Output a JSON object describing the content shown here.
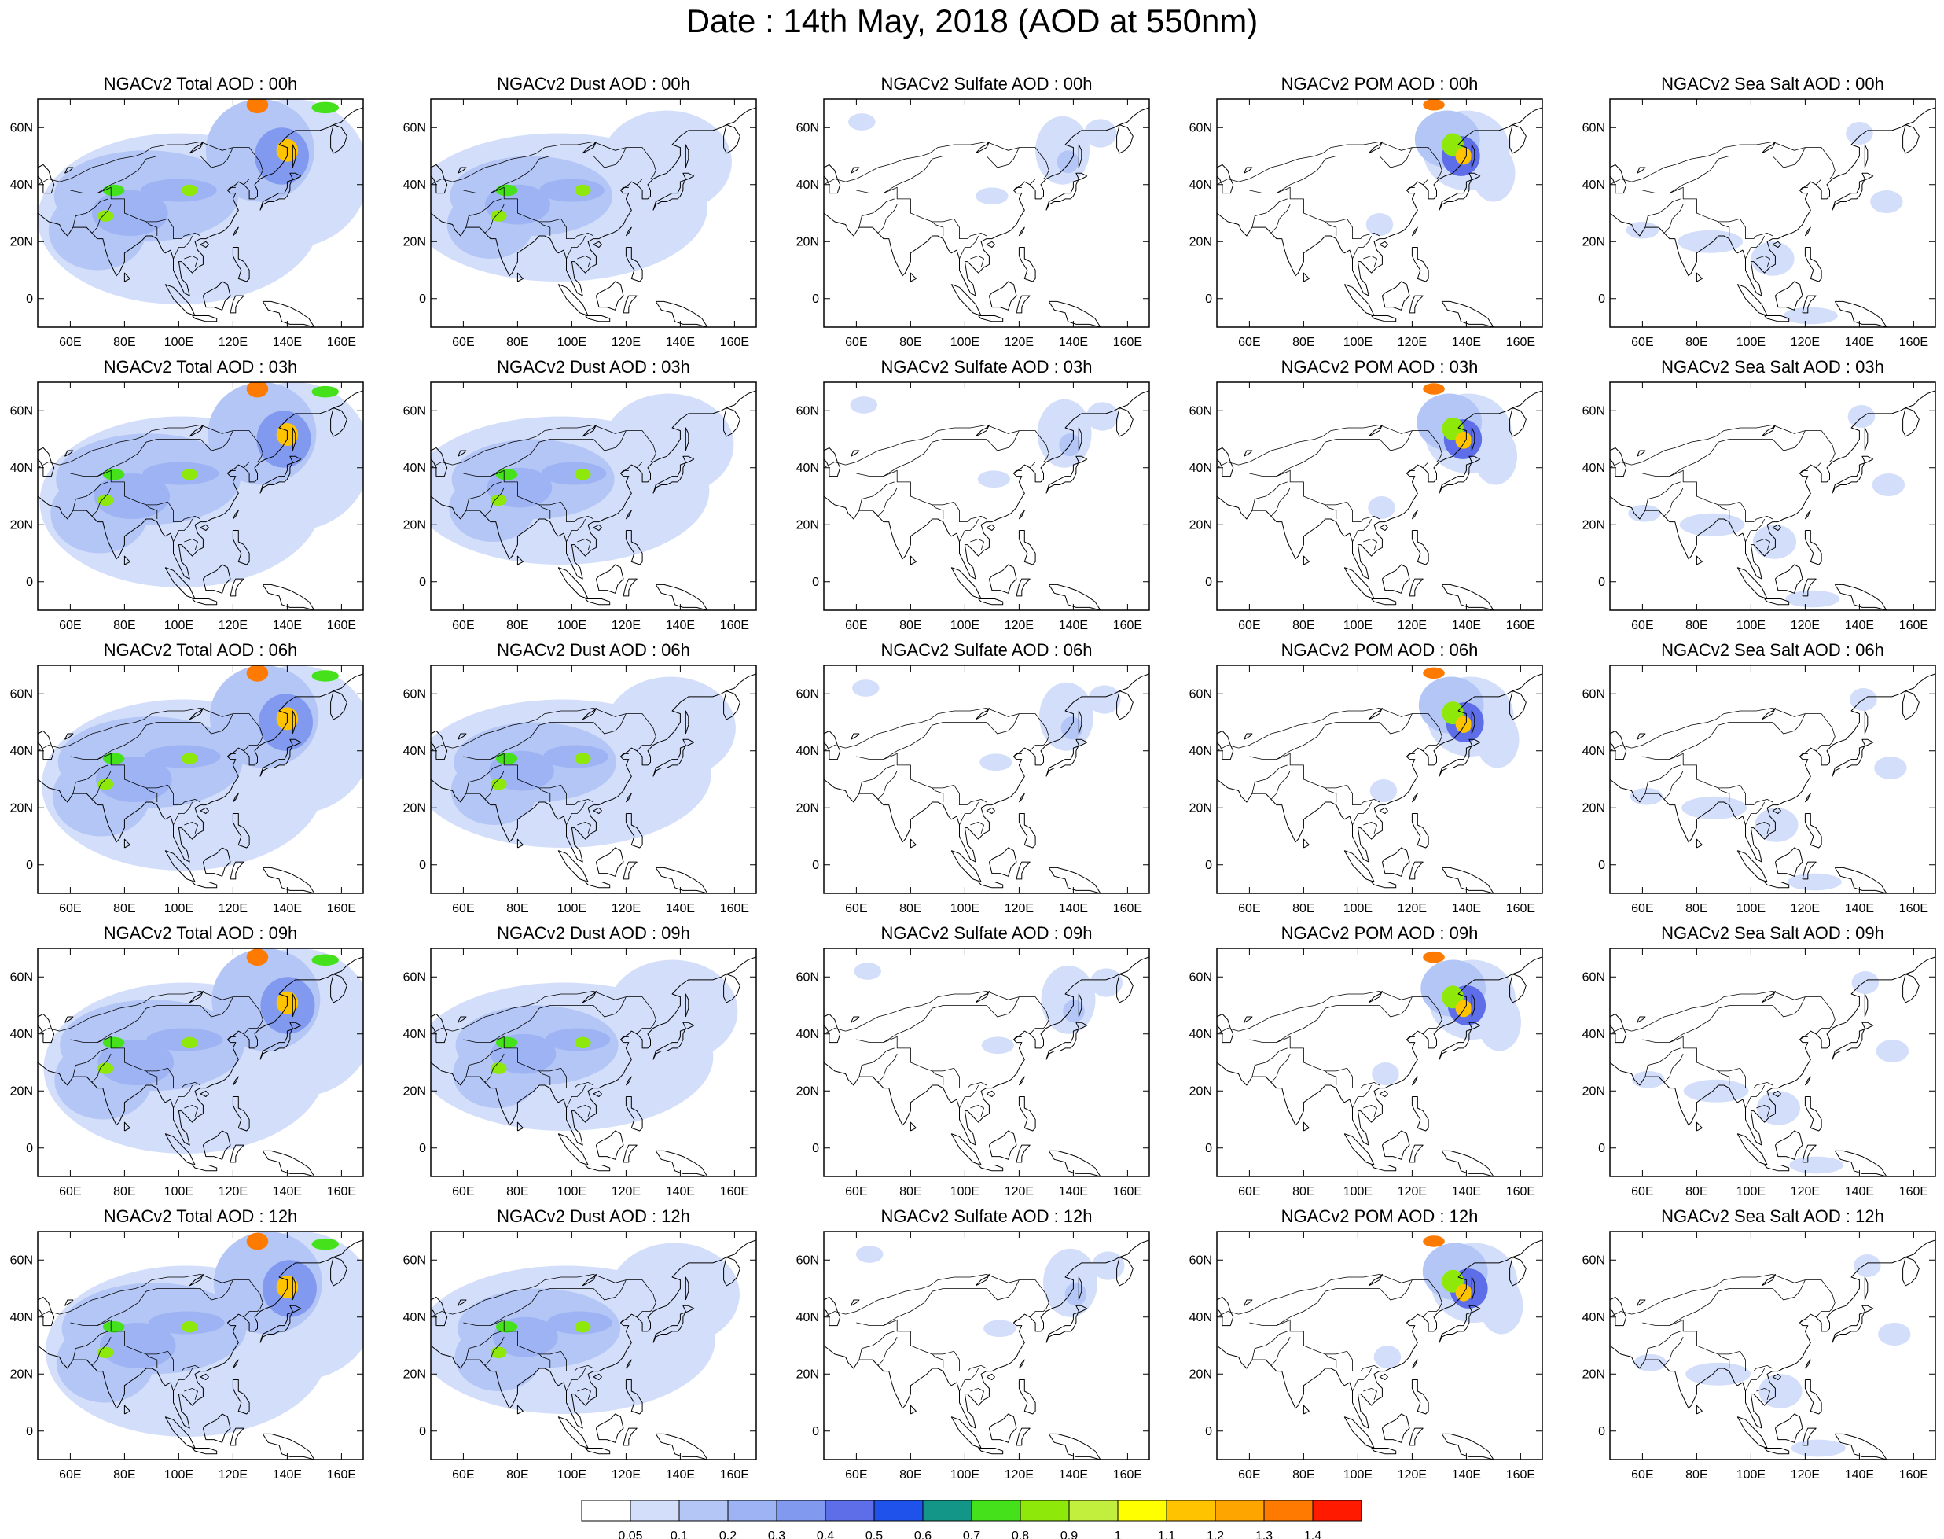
{
  "title": "Date : 14th May, 2018 (AOD at 550nm)",
  "panels": [
    [
      "NGACv2 Total AOD : 00h",
      "NGACv2 Dust AOD : 00h",
      "NGACv2 Sulfate AOD : 00h",
      "NGACv2 POM AOD : 00h",
      "NGACv2 Sea Salt AOD : 00h"
    ],
    [
      "NGACv2 Total AOD : 03h",
      "NGACv2 Dust AOD : 03h",
      "NGACv2 Sulfate AOD : 03h",
      "NGACv2 POM AOD : 03h",
      "NGACv2 Sea Salt AOD : 03h"
    ],
    [
      "NGACv2 Total AOD : 06h",
      "NGACv2 Dust AOD : 06h",
      "NGACv2 Sulfate AOD : 06h",
      "NGACv2 POM AOD : 06h",
      "NGACv2 Sea Salt AOD : 06h"
    ],
    [
      "NGACv2 Total AOD : 09h",
      "NGACv2 Dust AOD : 09h",
      "NGACv2 Sulfate AOD : 09h",
      "NGACv2 POM AOD : 09h",
      "NGACv2 Sea Salt  AOD : 09h"
    ],
    [
      "NGACv2 Total AOD  : 12h",
      "NGACv2 Dust AOD : 12h",
      "NGACv2 Sulfate AOD : 12h",
      "NGACv2 POM  AOD : 12h",
      "NGACv2 Sea Salt  AOD : 12h"
    ]
  ],
  "map": {
    "lon_range": [
      48,
      168
    ],
    "lat_range": [
      -10,
      70
    ],
    "lon_ticks": [
      "60E",
      "80E",
      "100E",
      "120E",
      "140E",
      "160E"
    ],
    "lat_ticks": [
      "60N",
      "40N",
      "20N",
      "0"
    ]
  },
  "colorbar": {
    "labels": [
      "0.05",
      "0.1",
      "0.2",
      "0.3",
      "0.4",
      "0.5",
      "0.6",
      "0.7",
      "0.8",
      "0.9",
      "1",
      "1.1",
      "1.2",
      "1.3",
      "1.4"
    ],
    "colors": [
      "#ffffff",
      "#d3defa",
      "#b4c6f6",
      "#9db3f3",
      "#8199ef",
      "#5d6ee8",
      "#1f52ea",
      "#139687",
      "#45e21c",
      "#8ee80a",
      "#c2ee3e",
      "#ffff00",
      "#ffc300",
      "#ffa500",
      "#ff7a00",
      "#ff1a00"
    ]
  },
  "colors": {
    "coast": "#000000",
    "frame": "#000000"
  }
}
